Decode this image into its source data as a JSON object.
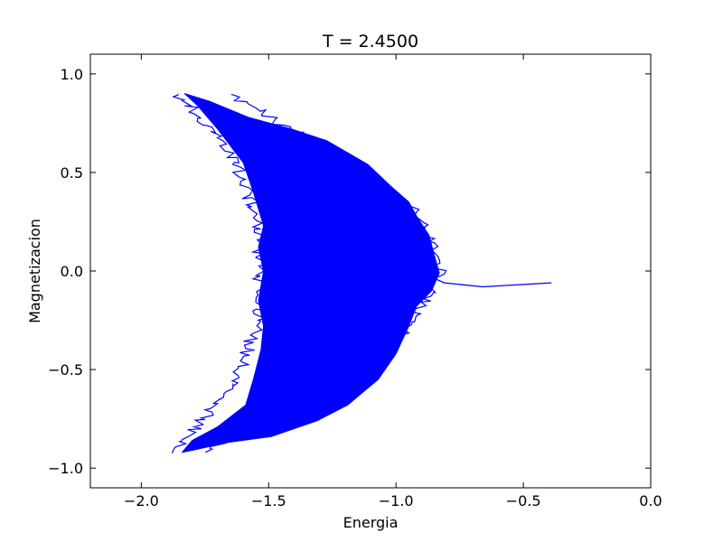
{
  "chart_data": {
    "type": "line",
    "title": "T = 2.4500",
    "xlabel": "Energia",
    "ylabel": "Magnetizacion",
    "xlim": [
      -2.2,
      0.0
    ],
    "ylim": [
      -1.1,
      1.1
    ],
    "xticks": [
      -2.0,
      -1.5,
      -1.0,
      -0.5,
      0.0
    ],
    "xtick_labels": [
      "−2.0",
      "−1.5",
      "−1.0",
      "−0.5",
      "0.0"
    ],
    "yticks": [
      -1.0,
      -0.5,
      0.0,
      0.5,
      1.0
    ],
    "ytick_labels": [
      "−1.0",
      "−0.5",
      "0.0",
      "0.5",
      "1.0"
    ],
    "grid": false,
    "line_color": "#0000ff",
    "series": [
      {
        "start": [
          [
            -0.39,
            -0.06
          ],
          [
            -0.66,
            -0.08
          ],
          [
            -0.81,
            -0.06
          ],
          [
            -0.88,
            -0.02
          ],
          [
            -0.97,
            0.02
          ],
          [
            -1.05,
            0.08
          ]
        ],
        "band": {
          "m_range": [
            -0.92,
            0.9
          ],
          "left_edge": [
            [
              -0.92,
              -1.84
            ],
            [
              -0.6,
              -1.62
            ],
            [
              -0.3,
              -1.52
            ],
            [
              0.0,
              -1.5
            ],
            [
              0.3,
              -1.52
            ],
            [
              0.6,
              -1.62
            ],
            [
              0.9,
              -1.83
            ]
          ],
          "right_edge": [
            [
              -0.92,
              -1.78
            ],
            [
              -0.6,
              -1.35
            ],
            [
              -0.3,
              -0.98
            ],
            [
              0.0,
              -0.86
            ],
            [
              0.3,
              -0.94
            ],
            [
              0.6,
              -1.28
            ],
            [
              0.9,
              -1.7
            ]
          ],
          "outline": [
            [
              -1.83,
              0.9
            ],
            [
              -1.73,
              0.86
            ],
            [
              -1.58,
              0.78
            ],
            [
              -1.41,
              0.72
            ],
            [
              -1.27,
              0.66
            ],
            [
              -1.11,
              0.54
            ],
            [
              -1.02,
              0.43
            ],
            [
              -0.95,
              0.35
            ],
            [
              -0.92,
              0.28
            ],
            [
              -0.87,
              0.18
            ],
            [
              -0.85,
              0.08
            ],
            [
              -0.83,
              -0.01
            ],
            [
              -0.86,
              -0.1
            ],
            [
              -0.92,
              -0.18
            ],
            [
              -0.95,
              -0.28
            ],
            [
              -1.0,
              -0.42
            ],
            [
              -1.07,
              -0.55
            ],
            [
              -1.19,
              -0.68
            ],
            [
              -1.31,
              -0.76
            ],
            [
              -1.49,
              -0.84
            ],
            [
              -1.66,
              -0.87
            ],
            [
              -1.8,
              -0.91
            ],
            [
              -1.84,
              -0.92
            ],
            [
              -1.8,
              -0.86
            ],
            [
              -1.7,
              -0.79
            ],
            [
              -1.59,
              -0.68
            ],
            [
              -1.56,
              -0.55
            ],
            [
              -1.53,
              -0.4
            ],
            [
              -1.52,
              -0.28
            ],
            [
              -1.54,
              -0.15
            ],
            [
              -1.52,
              0.0
            ],
            [
              -1.54,
              0.12
            ],
            [
              -1.52,
              0.23
            ],
            [
              -1.56,
              0.4
            ],
            [
              -1.6,
              0.55
            ],
            [
              -1.7,
              0.72
            ],
            [
              -1.78,
              0.84
            ],
            [
              -1.83,
              0.9
            ]
          ]
        }
      }
    ]
  }
}
